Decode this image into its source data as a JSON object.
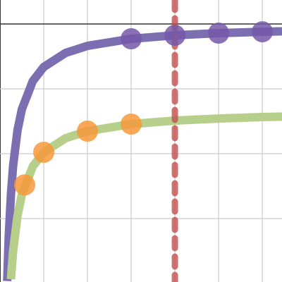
{
  "chart_data": {
    "type": "line",
    "xlim": [
      0,
      6.45
    ],
    "ylim": [
      -3.978,
      0.37
    ],
    "xticks": [
      0,
      1,
      2,
      3,
      4,
      5,
      6
    ],
    "yticks": [
      -3,
      -2,
      -1,
      0
    ],
    "grid": true,
    "series": [
      {
        "color": "#7b6fb2",
        "x": [
          0.165,
          0.2,
          0.25,
          0.3,
          0.4,
          0.5,
          0.75,
          1,
          1.5,
          2,
          3,
          4,
          5,
          6,
          6.45
        ],
        "values": [
          -3.963,
          -3.272,
          -2.63,
          -2.185,
          -1.641,
          -1.315,
          -0.88,
          -0.663,
          -0.446,
          -0.337,
          -0.228,
          -0.174,
          -0.141,
          -0.12,
          -0.112
        ]
      },
      {
        "color": "#b6d08c",
        "x": [
          0.25,
          0.3,
          0.4,
          0.5,
          0.75,
          1,
          1.5,
          2,
          3,
          4,
          5,
          6,
          6.45
        ],
        "values": [
          -3.935,
          -3.5,
          -2.957,
          -2.63,
          -2.196,
          -1.978,
          -1.761,
          -1.652,
          -1.543,
          -1.489,
          -1.457,
          -1.435,
          -1.427
        ]
      }
    ],
    "points": [
      {
        "color": "#7658a8",
        "x": [
          3,
          4,
          5,
          6
        ],
        "values": [
          -0.228,
          -0.174,
          -0.141,
          -0.12
        ]
      },
      {
        "color": "#f7993a",
        "x": [
          0.565,
          1,
          2,
          3
        ],
        "values": [
          -2.481,
          -1.978,
          -1.652,
          -1.543
        ]
      }
    ],
    "vlines": [
      {
        "x": 4,
        "color": "#c0504d",
        "dashed": true
      }
    ]
  }
}
